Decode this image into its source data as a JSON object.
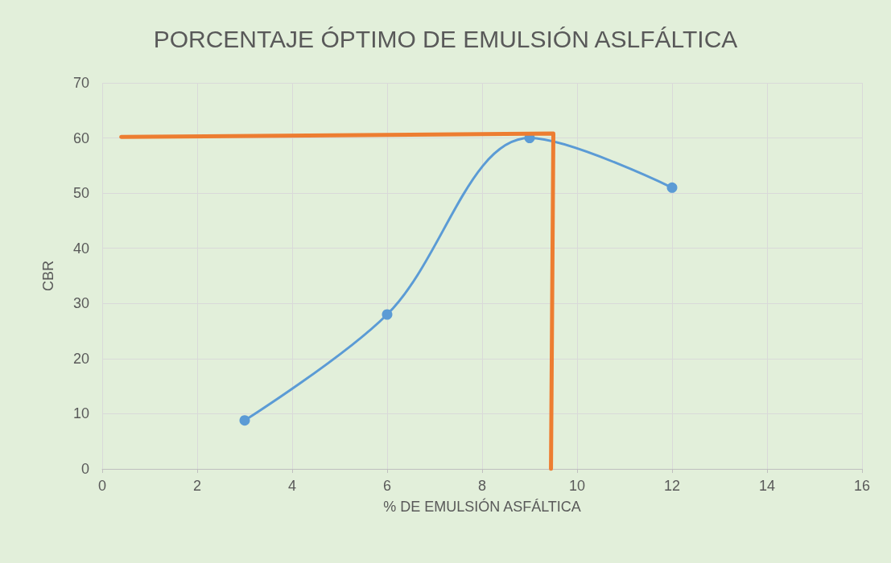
{
  "chart_data": {
    "type": "line",
    "title": "PORCENTAJE ÓPTIMO DE EMULSIÓN ASLFÁLTICA",
    "xlabel": "% DE EMULSIÓN ASFÁLTICA",
    "ylabel": "CBR",
    "series": [
      {
        "color": "#5b9bd5",
        "x": [
          3,
          6,
          9,
          12
        ],
        "values": [
          8.8,
          28,
          60,
          51
        ],
        "marker": "circle"
      },
      {
        "color": "#ed7d31",
        "x": [
          0.4,
          9.5,
          9.45
        ],
        "values": [
          60.2,
          60.8,
          0
        ],
        "marker": "none"
      }
    ],
    "xlim": [
      0,
      16
    ],
    "xticks": [
      0,
      2,
      4,
      6,
      8,
      10,
      12,
      14,
      16
    ],
    "ylim": [
      0,
      70
    ],
    "yticks": [
      0,
      10,
      20,
      30,
      40,
      50,
      60,
      70
    ],
    "grid": true
  }
}
